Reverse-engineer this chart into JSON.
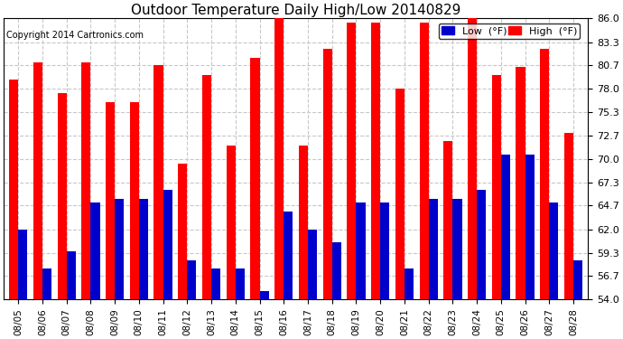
{
  "title": "Outdoor Temperature Daily High/Low 20140829",
  "copyright": "Copyright 2014 Cartronics.com",
  "dates": [
    "08/05",
    "08/06",
    "08/07",
    "08/08",
    "08/09",
    "08/10",
    "08/11",
    "08/12",
    "08/13",
    "08/14",
    "08/15",
    "08/16",
    "08/17",
    "08/18",
    "08/19",
    "08/20",
    "08/21",
    "08/22",
    "08/23",
    "08/24",
    "08/25",
    "08/26",
    "08/27",
    "08/28"
  ],
  "highs": [
    79.0,
    81.0,
    77.5,
    81.0,
    76.5,
    76.5,
    80.7,
    69.5,
    79.5,
    71.5,
    81.5,
    86.0,
    71.5,
    82.5,
    85.5,
    85.5,
    78.0,
    85.5,
    72.0,
    86.0,
    79.5,
    80.5,
    82.5,
    73.0
  ],
  "lows": [
    62.0,
    57.5,
    59.5,
    65.0,
    65.5,
    65.5,
    66.5,
    58.5,
    57.5,
    57.5,
    55.0,
    64.0,
    62.0,
    60.5,
    65.0,
    65.0,
    57.5,
    65.5,
    65.5,
    66.5,
    70.5,
    70.5,
    65.0,
    58.5
  ],
  "high_color": "#ff0000",
  "low_color": "#0000cc",
  "bg_color": "#ffffff",
  "grid_color": "#c8c8c8",
  "ymin": 54.0,
  "ymax": 86.0,
  "yticks": [
    54.0,
    56.7,
    59.3,
    62.0,
    64.7,
    67.3,
    70.0,
    72.7,
    75.3,
    78.0,
    80.7,
    83.3,
    86.0
  ],
  "legend_low_label": "Low  (°F)",
  "legend_high_label": "High  (°F)",
  "bar_width": 0.38
}
